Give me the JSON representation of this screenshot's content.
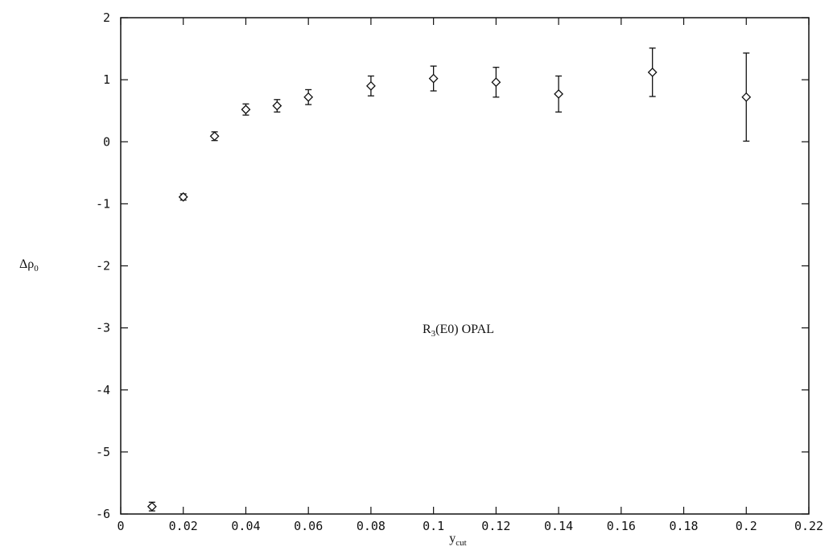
{
  "chart_data": {
    "type": "scatter",
    "title": "",
    "annotation": {
      "main": "R",
      "sub": "3",
      "rest": "(E0) OPAL"
    },
    "xlabel": {
      "main": "y",
      "sub": "cut"
    },
    "ylabel": {
      "main": "Δρ",
      "sub": "0"
    },
    "xlim": [
      0,
      0.22
    ],
    "ylim": [
      -6,
      2
    ],
    "xticks": [
      0,
      0.02,
      0.04,
      0.06,
      0.08,
      0.1,
      0.12,
      0.14,
      0.16,
      0.18,
      0.2,
      0.22
    ],
    "xtick_labels": [
      "0",
      "0.02",
      "0.04",
      "0.06",
      "0.08",
      "0.1",
      "0.12",
      "0.14",
      "0.16",
      "0.18",
      "0.2",
      "0.22"
    ],
    "yticks": [
      -6,
      -5,
      -4,
      -3,
      -2,
      -1,
      0,
      1,
      2
    ],
    "ytick_labels": [
      "-6",
      "-5",
      "-4",
      "-3",
      "-2",
      "-1",
      "0",
      "1",
      "2"
    ],
    "grid": false,
    "marker": "open-diamond",
    "series": [
      {
        "x": [
          0.01,
          0.02,
          0.03,
          0.04,
          0.05,
          0.06,
          0.08,
          0.1,
          0.12,
          0.14,
          0.17,
          0.2
        ],
        "y": [
          -5.88,
          -0.89,
          0.09,
          0.52,
          0.58,
          0.72,
          0.9,
          1.02,
          0.96,
          0.77,
          1.12,
          0.72
        ],
        "err": [
          0.07,
          0.05,
          0.07,
          0.09,
          0.1,
          0.12,
          0.16,
          0.2,
          0.24,
          0.29,
          0.39,
          0.71
        ]
      }
    ]
  }
}
